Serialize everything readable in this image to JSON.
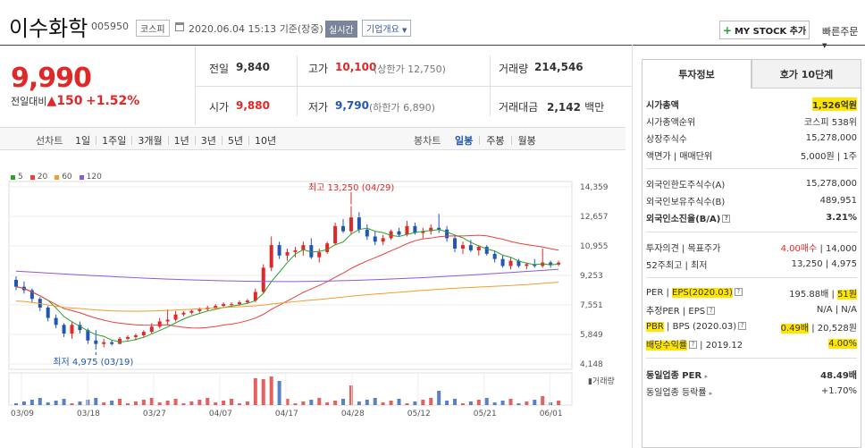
{
  "header": {
    "company_name": "이수화학",
    "stock_code": "005950",
    "market_tag": "코스피",
    "datetime": "2020.06.04 15:13",
    "basis": "기준(장중)",
    "realtime_badge": "실시간",
    "company_info": "기업개요",
    "mystock_button": "MY STOCK 추가",
    "quick_order": "빠른주문"
  },
  "quote": {
    "price": "9,990",
    "delta_label": "전일대비",
    "delta_arrow": "▲",
    "delta_value": "150",
    "delta_pct": "+1.52%",
    "prev_close_label": "전일",
    "prev_close": "9,840",
    "open_label": "시가",
    "open": "9,880",
    "high_label": "고가",
    "high": "10,100",
    "upper_limit": "(상한가 12,750)",
    "low_label": "저가",
    "low": "9,790",
    "lower_limit": "(하한가 6,890)",
    "volume_label": "거래량",
    "volume": "214,546",
    "amount_label": "거래대금",
    "amount": "2,142",
    "amount_unit": "백만"
  },
  "toolbar": {
    "line_chart": "선차트",
    "periods": [
      "1일",
      "1주일",
      "3개월",
      "1년",
      "3년",
      "5년",
      "10년"
    ],
    "candle_chart": "봉차트",
    "candle_periods": [
      "일봉",
      "주봉",
      "월봉"
    ],
    "active_candle": "일봉"
  },
  "chart_data": {
    "type": "candlestick",
    "legend": [
      {
        "name": "5",
        "color": "#2ca02c"
      },
      {
        "name": "20",
        "color": "#e8413c"
      },
      {
        "name": "60",
        "color": "#f39c2a"
      },
      {
        "name": "120",
        "color": "#8a5bd6"
      }
    ],
    "y_ticks": [
      "14,359",
      "12,657",
      "10,955",
      "9,253",
      "7,551",
      "5,849",
      "4,148"
    ],
    "x_ticks": [
      "03/09",
      "03/18",
      "03/27",
      "04/07",
      "04/17",
      "04/28",
      "05/12",
      "05/21",
      "06/01"
    ],
    "high_annotation": "최고 13,250 (04/29)",
    "low_annotation": "최저 4,975 (03/19)",
    "volume_label": "거래량",
    "ylim": [
      4148,
      14359
    ],
    "candles": [
      [
        9000,
        9200,
        8400,
        8600
      ],
      [
        8600,
        8900,
        8200,
        8400
      ],
      [
        8400,
        8500,
        7700,
        7900
      ],
      [
        7900,
        8000,
        7200,
        7400
      ],
      [
        7400,
        7500,
        6600,
        6800
      ],
      [
        6800,
        7000,
        6200,
        6400
      ],
      [
        6400,
        6500,
        5700,
        5900
      ],
      [
        5900,
        6600,
        5600,
        6400
      ],
      [
        6400,
        6600,
        5900,
        6100
      ],
      [
        6100,
        6200,
        5300,
        5500
      ],
      [
        5500,
        6100,
        4975,
        5300
      ],
      [
        5300,
        5600,
        5100,
        5400
      ],
      [
        5400,
        5500,
        5200,
        5300
      ],
      [
        5300,
        5700,
        5300,
        5600
      ],
      [
        5600,
        5800,
        5500,
        5700
      ],
      [
        5700,
        5900,
        5500,
        5800
      ],
      [
        5800,
        6100,
        5700,
        6000
      ],
      [
        6000,
        6500,
        5900,
        6300
      ],
      [
        6300,
        6800,
        6200,
        6600
      ],
      [
        6600,
        7300,
        6400,
        6700
      ],
      [
        6700,
        7200,
        6600,
        7000
      ],
      [
        7000,
        7200,
        6900,
        7100
      ],
      [
        7100,
        7300,
        7000,
        7200
      ],
      [
        7200,
        7400,
        7100,
        7300
      ],
      [
        7300,
        7500,
        7200,
        7400
      ],
      [
        7400,
        7600,
        7300,
        7500
      ],
      [
        7500,
        7700,
        7400,
        7600
      ],
      [
        7600,
        7700,
        7500,
        7600
      ],
      [
        7600,
        7800,
        7500,
        7700
      ],
      [
        7700,
        7900,
        7600,
        7800
      ],
      [
        7800,
        8500,
        7700,
        8300
      ],
      [
        8300,
        9900,
        8200,
        9700
      ],
      [
        9700,
        11500,
        9500,
        11000
      ],
      [
        11000,
        11200,
        10200,
        10400
      ],
      [
        10400,
        10800,
        10100,
        10600
      ],
      [
        10600,
        10900,
        10300,
        10700
      ],
      [
        10700,
        11200,
        10400,
        11000
      ],
      [
        11000,
        11400,
        10200,
        10300
      ],
      [
        10300,
        10800,
        10000,
        10600
      ],
      [
        10600,
        11200,
        10500,
        11100
      ],
      [
        11100,
        12300,
        11000,
        12100
      ],
      [
        12100,
        12500,
        11700,
        11800
      ],
      [
        11800,
        13250,
        11600,
        12600
      ],
      [
        12600,
        12900,
        11700,
        11900
      ],
      [
        11900,
        12200,
        11300,
        11500
      ],
      [
        11500,
        11800,
        11000,
        11200
      ],
      [
        11200,
        11600,
        11000,
        11400
      ],
      [
        11400,
        11900,
        11300,
        11800
      ],
      [
        11800,
        12000,
        11500,
        11600
      ],
      [
        11600,
        12400,
        11500,
        12100
      ],
      [
        12100,
        12300,
        11600,
        11700
      ],
      [
        11700,
        12000,
        11400,
        11800
      ],
      [
        11800,
        12200,
        11600,
        12000
      ],
      [
        12000,
        12800,
        11700,
        11900
      ],
      [
        11900,
        12100,
        11200,
        11400
      ],
      [
        11400,
        11600,
        10600,
        10800
      ],
      [
        10800,
        11200,
        10500,
        11000
      ],
      [
        11000,
        11300,
        10600,
        10700
      ],
      [
        10700,
        11000,
        10400,
        10900
      ],
      [
        10900,
        11000,
        10400,
        10500
      ],
      [
        10500,
        10700,
        10000,
        10200
      ],
      [
        10200,
        10400,
        9700,
        9800
      ],
      [
        9800,
        10300,
        9600,
        10100
      ],
      [
        10100,
        10200,
        9700,
        9800
      ],
      [
        9800,
        10000,
        9600,
        9900
      ],
      [
        9900,
        10200,
        9700,
        9800
      ],
      [
        9800,
        10800,
        9700,
        10000
      ],
      [
        10000,
        10100,
        9700,
        9840
      ],
      [
        9880,
        10100,
        9790,
        9990
      ]
    ]
  },
  "side_panel": {
    "tab_invest": "투자정보",
    "tab_quote": "호가 10단계",
    "market_cap_label": "시가총액",
    "market_cap": "1,526억원",
    "cap_rank_label": "시가총액순위",
    "cap_rank": "코스피 538위",
    "shares_label": "상장주식수",
    "shares": "15,278,000",
    "par_label": "액면가 | 매매단위",
    "par": "5,000원 | 1주",
    "foreign_limit_label": "외국인한도주식수(A)",
    "foreign_limit": "15,278,000",
    "foreign_hold_label": "외국인보유주식수(B)",
    "foreign_hold": "489,951",
    "foreign_ratio_label": "외국인소진율(B/A)",
    "foreign_ratio": "3.21%",
    "opinion_label": "투자의견 | 목표주가",
    "opinion": "4.00매수",
    "target": "14,000",
    "w52_label": "52주최고 | 최저",
    "w52": "13,250 | 4,975",
    "per_label": "PER",
    "eps_label": "EPS(2020.03)",
    "per": "195.88배",
    "eps": "51원",
    "est_label": "추정PER | EPS",
    "est": "N/A | N/A",
    "pbr_label": "PBR",
    "bps_label": "BPS (2020.03)",
    "pbr": "0.49배",
    "bps": "20,528원",
    "div_label": "배당수익률",
    "div_year": "2019.12",
    "div": "4.00%",
    "industry_per_label": "동일업종 PER",
    "industry_per": "48.49배",
    "industry_rate_label": "동일업종 등락률",
    "industry_rate": "+1.70%"
  }
}
